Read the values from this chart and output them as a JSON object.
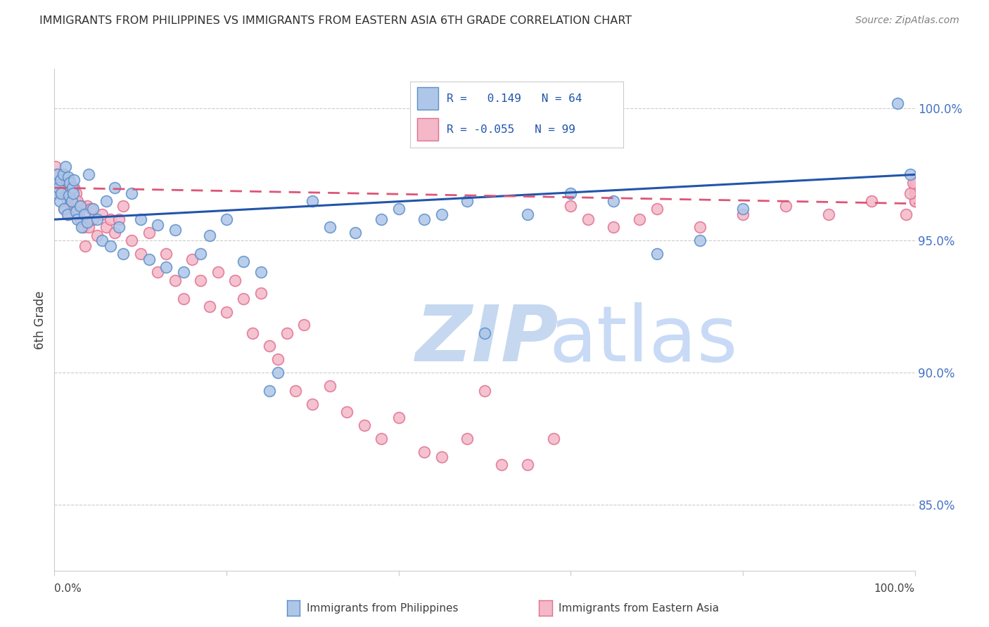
{
  "title": "IMMIGRANTS FROM PHILIPPINES VS IMMIGRANTS FROM EASTERN ASIA 6TH GRADE CORRELATION CHART",
  "source": "Source: ZipAtlas.com",
  "ylabel": "6th Grade",
  "right_yticks": [
    85.0,
    90.0,
    95.0,
    100.0
  ],
  "right_ytick_labels": [
    "85.0%",
    "90.0%",
    "95.0%",
    "100.0%"
  ],
  "xlim": [
    0.0,
    100.0
  ],
  "ylim": [
    82.5,
    101.5
  ],
  "blue_color": "#aec6e8",
  "pink_color": "#f4b8c8",
  "blue_edge_color": "#5b8fc9",
  "pink_edge_color": "#e07090",
  "blue_line_color": "#2255aa",
  "pink_line_color": "#dd5577",
  "right_tick_color": "#4472c4",
  "watermark_zip_color": "#c5d8f0",
  "watermark_atlas_color": "#c8daf5",
  "background_color": "#ffffff",
  "blue_x": [
    0.2,
    0.3,
    0.4,
    0.5,
    0.6,
    0.7,
    0.8,
    1.0,
    1.1,
    1.3,
    1.5,
    1.6,
    1.7,
    1.8,
    2.0,
    2.1,
    2.2,
    2.3,
    2.5,
    2.7,
    3.0,
    3.2,
    3.5,
    3.8,
    4.0,
    4.5,
    5.0,
    5.5,
    6.0,
    6.5,
    7.0,
    7.5,
    8.0,
    9.0,
    10.0,
    11.0,
    12.0,
    13.0,
    14.0,
    15.0,
    17.0,
    18.0,
    20.0,
    22.0,
    24.0,
    25.0,
    26.0,
    30.0,
    32.0,
    35.0,
    38.0,
    40.0,
    43.0,
    45.0,
    48.0,
    50.0,
    55.0,
    60.0,
    65.0,
    70.0,
    75.0,
    80.0,
    98.0,
    99.5
  ],
  "blue_y": [
    97.2,
    96.8,
    97.5,
    97.0,
    96.5,
    97.3,
    96.8,
    97.5,
    96.2,
    97.8,
    96.0,
    97.4,
    96.7,
    97.2,
    96.5,
    97.0,
    96.8,
    97.3,
    96.1,
    95.8,
    96.3,
    95.5,
    96.0,
    95.7,
    97.5,
    96.2,
    95.8,
    95.0,
    96.5,
    94.8,
    97.0,
    95.5,
    94.5,
    96.8,
    95.8,
    94.3,
    95.6,
    94.0,
    95.4,
    93.8,
    94.5,
    95.2,
    95.8,
    94.2,
    93.8,
    89.3,
    90.0,
    96.5,
    95.5,
    95.3,
    95.8,
    96.2,
    95.8,
    96.0,
    96.5,
    91.5,
    96.0,
    96.8,
    96.5,
    94.5,
    95.0,
    96.2,
    100.2,
    97.5
  ],
  "pink_x": [
    0.1,
    0.2,
    0.3,
    0.4,
    0.5,
    0.6,
    0.7,
    0.8,
    0.9,
    1.0,
    1.1,
    1.2,
    1.3,
    1.4,
    1.5,
    1.6,
    1.7,
    1.8,
    2.0,
    2.1,
    2.2,
    2.3,
    2.4,
    2.5,
    2.6,
    2.7,
    2.8,
    3.0,
    3.2,
    3.4,
    3.6,
    3.8,
    4.0,
    4.2,
    4.5,
    5.0,
    5.5,
    6.0,
    6.5,
    7.0,
    7.5,
    8.0,
    9.0,
    10.0,
    11.0,
    12.0,
    13.0,
    14.0,
    15.0,
    16.0,
    17.0,
    18.0,
    19.0,
    20.0,
    21.0,
    22.0,
    23.0,
    24.0,
    25.0,
    26.0,
    27.0,
    28.0,
    29.0,
    30.0,
    32.0,
    34.0,
    36.0,
    38.0,
    40.0,
    43.0,
    45.0,
    48.0,
    50.0,
    52.0,
    55.0,
    58.0,
    60.0,
    62.0,
    65.0,
    68.0,
    70.0,
    75.0,
    80.0,
    85.0,
    90.0,
    95.0,
    99.0,
    100.0,
    100.0,
    100.0,
    100.0,
    100.0,
    100.0,
    100.0,
    100.0,
    100.0,
    100.0,
    99.5,
    99.8
  ],
  "pink_y": [
    97.8,
    97.3,
    97.5,
    97.0,
    97.2,
    96.8,
    97.0,
    97.3,
    96.8,
    97.5,
    96.2,
    97.0,
    96.8,
    97.2,
    96.5,
    96.0,
    97.3,
    96.7,
    96.5,
    96.8,
    96.3,
    97.0,
    96.5,
    96.8,
    96.2,
    96.5,
    96.0,
    95.8,
    96.3,
    95.5,
    94.8,
    96.3,
    95.5,
    96.2,
    95.8,
    95.2,
    96.0,
    95.5,
    95.8,
    95.3,
    95.8,
    96.3,
    95.0,
    94.5,
    95.3,
    93.8,
    94.5,
    93.5,
    92.8,
    94.3,
    93.5,
    92.5,
    93.8,
    92.3,
    93.5,
    92.8,
    91.5,
    93.0,
    91.0,
    90.5,
    91.5,
    89.3,
    91.8,
    88.8,
    89.5,
    88.5,
    88.0,
    87.5,
    88.3,
    87.0,
    86.8,
    87.5,
    89.3,
    86.5,
    86.5,
    87.5,
    96.3,
    95.8,
    95.5,
    95.8,
    96.2,
    95.5,
    96.0,
    96.3,
    96.0,
    96.5,
    96.0,
    96.5,
    97.0,
    96.8,
    97.2,
    97.0,
    96.8,
    97.2,
    97.0,
    96.5,
    97.3,
    96.8,
    97.2
  ]
}
